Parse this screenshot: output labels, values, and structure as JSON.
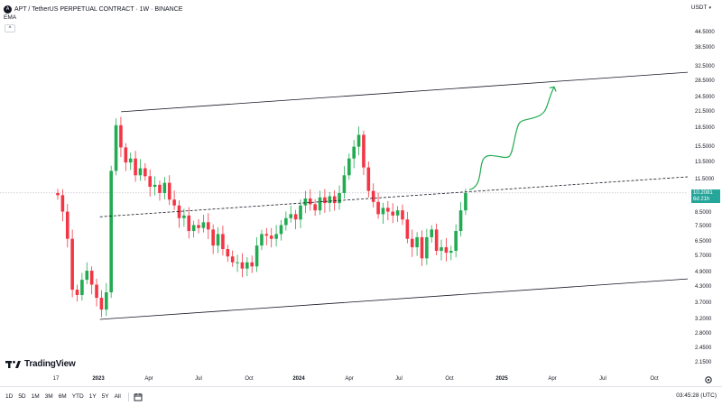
{
  "header": {
    "symbol_badge": "A",
    "title": "APT / TetherUS PERPETUAL CONTRACT · 1W · BINANCE",
    "indicator": "EMA",
    "currency": "USDT"
  },
  "last_price": {
    "value": "10.2081",
    "countdown": "6d 21h"
  },
  "time_labels": [
    "17",
    "2023",
    "Apr",
    "Jul",
    "Oct",
    "2024",
    "Apr",
    "Jul",
    "Oct",
    "2025",
    "Apr",
    "Jul",
    "Oct"
  ],
  "bold_time_labels": [
    "2023",
    "2024",
    "2025"
  ],
  "bottom_bar": {
    "ranges": [
      "1D",
      "5D",
      "1M",
      "3M",
      "6M",
      "YTD",
      "1Y",
      "5Y",
      "All"
    ],
    "clock": "03:45:28 (UTC)"
  },
  "logo_text": "TradingView",
  "colors": {
    "up": "#26a69a",
    "candle_up": "#22ab52",
    "candle_down": "#f23645",
    "line": "#131722",
    "projection": "#22ab52"
  },
  "chart_data": {
    "type": "candlestick",
    "title": "APT / TetherUS PERPETUAL CONTRACT · 1W · BINANCE",
    "scale": "log",
    "price_axis_ticks": [
      44.5,
      38.5,
      32.5,
      28.5,
      24.5,
      21.5,
      18.5,
      15.5,
      13.5,
      11.5,
      10.2081,
      8.5,
      7.5,
      6.5,
      5.7,
      4.9,
      4.3,
      3.7,
      3.2,
      2.8,
      2.45,
      2.15
    ],
    "price_axis_labels": [
      "44.5000",
      "38.5000",
      "32.5000",
      "28.5000",
      "24.5000",
      "21.5000",
      "18.5000",
      "15.5000",
      "13.5000",
      "11.5000",
      "10.2081",
      "8.5000",
      "7.5000",
      "6.5000",
      "5.7000",
      "4.9000",
      "4.3000",
      "3.7000",
      "3.2000",
      "2.8000",
      "2.4500",
      "2.1500"
    ],
    "time_axis": [
      "17",
      "2023",
      "Apr",
      "Jul",
      "Oct",
      "2024",
      "Apr",
      "Jul",
      "Oct",
      "2025",
      "Apr",
      "Jul",
      "Oct"
    ],
    "weekly_closes": [
      10.0,
      8.6,
      6.7,
      4.2,
      4.0,
      4.6,
      5.0,
      4.4,
      3.9,
      3.5,
      4.1,
      12.5,
      19.0,
      15.5,
      13.5,
      14.0,
      12.0,
      12.8,
      11.9,
      10.8,
      11.0,
      10.2,
      11.2,
      9.6,
      9.1,
      8.1,
      8.3,
      7.2,
      7.6,
      7.4,
      7.8,
      7.3,
      6.3,
      7.0,
      6.1,
      5.7,
      5.4,
      5.4,
      5.1,
      5.4,
      5.2,
      6.3,
      7.0,
      6.9,
      6.7,
      7.0,
      7.6,
      8.1,
      8.4,
      8.0,
      9.1,
      9.7,
      9.2,
      8.7,
      9.8,
      9.3,
      9.9,
      9.3,
      10.2,
      12.0,
      14.0,
      15.6,
      17.4,
      12.9,
      10.4,
      9.4,
      8.4,
      8.9,
      8.6,
      8.3,
      8.7,
      8.0,
      6.7,
      6.2,
      6.8,
      5.6,
      6.8,
      7.3,
      6.0,
      6.2,
      5.9,
      6.0,
      7.2,
      8.7,
      10.2
    ],
    "channel": {
      "upper_line": [
        {
          "date": "2023-01",
          "price": 21.5
        },
        {
          "date": "2025-11",
          "price": 34.0
        }
      ],
      "lower_line": [
        {
          "date": "2022-12",
          "price": 3.2
        },
        {
          "date": "2025-11",
          "price": 5.1
        }
      ],
      "mid_line": [
        {
          "date": "2022-12",
          "price": 8.2
        },
        {
          "date": "2025-11",
          "price": 13.0
        }
      ]
    },
    "projection": {
      "from": 10.5,
      "to": 27.0,
      "type": "curved-arrow"
    },
    "grid": false
  }
}
